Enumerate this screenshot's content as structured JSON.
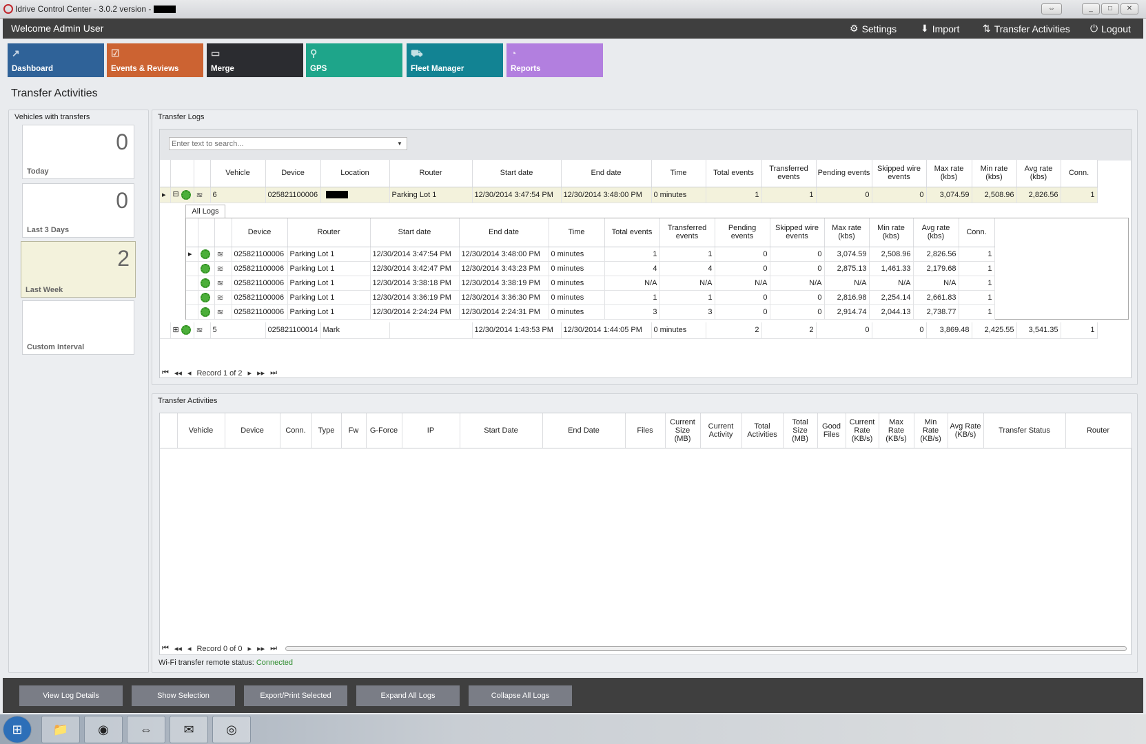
{
  "window": {
    "title": "Idrive Control Center - 3.0.2 version -",
    "controls": [
      "⇔",
      "_",
      "□",
      "✕"
    ]
  },
  "header": {
    "welcome": "Welcome Admin User",
    "links": [
      {
        "icon": "gears-icon",
        "glyph": "⚙",
        "label": "Settings"
      },
      {
        "icon": "download-icon",
        "glyph": "⬇",
        "label": "Import"
      },
      {
        "icon": "transfer-arrows-icon",
        "glyph": "⇅",
        "label": "Transfer Activities"
      },
      {
        "icon": "power-icon",
        "glyph": "⏻",
        "label": "Logout"
      }
    ]
  },
  "tiles": [
    {
      "label": "Dashboard",
      "color": "#2f6298",
      "glyph": "↗"
    },
    {
      "label": "Events & Reviews",
      "color": "#cc6332",
      "glyph": "☑"
    },
    {
      "label": "Merge",
      "color": "#2b2c30",
      "glyph": "▭"
    },
    {
      "label": "GPS",
      "color": "#1ea58a",
      "glyph": "⚲"
    },
    {
      "label": "Fleet Manager",
      "color": "#128393",
      "glyph": "⛟"
    },
    {
      "label": "Reports",
      "color": "#b27fdf",
      "glyph": "◔"
    }
  ],
  "page_title": "Transfer Activities",
  "vehicles_panel": {
    "title": "Vehicles with transfers",
    "cards": [
      {
        "count": "0",
        "label": "Today"
      },
      {
        "count": "0",
        "label": "Last 3 Days"
      },
      {
        "count": "2",
        "label": "Last Week",
        "selected": true
      },
      {
        "count": "",
        "label": "Custom Interval"
      }
    ]
  },
  "transfer_logs": {
    "title": "Transfer Logs",
    "search_placeholder": "Enter text to search...",
    "columns": [
      "",
      "",
      "",
      "Vehicle",
      "Device",
      "Location",
      "Router",
      "Start date",
      "End date",
      "Time",
      "Total events",
      "Transferred events",
      "Pending events",
      "Skipped wire events",
      "Max rate (kbs)",
      "Min rate (kbs)",
      "Avg rate (kbs)",
      "Conn."
    ],
    "rows": [
      {
        "expanded": true,
        "vehicle": "6",
        "device": "025821100006",
        "location": "",
        "router": "Parking Lot 1",
        "start": "12/30/2014 3:47:54 PM",
        "end": "12/30/2014 3:48:00 PM",
        "time": "0 minutes",
        "total": "1",
        "transferred": "1",
        "pending": "0",
        "skipped": "0",
        "max": "3,074.59",
        "min": "2,508.96",
        "avg": "2,826.56",
        "conn": "1"
      },
      {
        "expanded": false,
        "vehicle": "5",
        "device": "025821100014",
        "location": "Mark",
        "router": "",
        "start": "12/30/2014 1:43:53 PM",
        "end": "12/30/2014 1:44:05 PM",
        "time": "0 minutes",
        "total": "2",
        "transferred": "2",
        "pending": "0",
        "skipped": "0",
        "max": "3,869.48",
        "min": "2,425.55",
        "avg": "3,541.35",
        "conn": "1"
      }
    ],
    "detail": {
      "tab": "All Logs",
      "columns": [
        "",
        "",
        "",
        "Device",
        "Router",
        "Start date",
        "End date",
        "Time",
        "Total events",
        "Transferred events",
        "Pending events",
        "Skipped wire events",
        "Max rate (kbs)",
        "Min rate (kbs)",
        "Avg rate (kbs)",
        "Conn."
      ],
      "rows": [
        [
          "025821100006",
          "Parking Lot 1",
          "12/30/2014 3:47:54 PM",
          "12/30/2014 3:48:00 PM",
          "0 minutes",
          "1",
          "1",
          "0",
          "0",
          "3,074.59",
          "2,508.96",
          "2,826.56",
          "1"
        ],
        [
          "025821100006",
          "Parking Lot 1",
          "12/30/2014 3:42:47 PM",
          "12/30/2014 3:43:23 PM",
          "0 minutes",
          "4",
          "4",
          "0",
          "0",
          "2,875.13",
          "1,461.33",
          "2,179.68",
          "1"
        ],
        [
          "025821100006",
          "Parking Lot 1",
          "12/30/2014 3:38:18 PM",
          "12/30/2014 3:38:19 PM",
          "0 minutes",
          "N/A",
          "N/A",
          "N/A",
          "N/A",
          "N/A",
          "N/A",
          "N/A",
          "1"
        ],
        [
          "025821100006",
          "Parking Lot 1",
          "12/30/2014 3:36:19 PM",
          "12/30/2014 3:36:30 PM",
          "0 minutes",
          "1",
          "1",
          "0",
          "0",
          "2,816.98",
          "2,254.14",
          "2,661.83",
          "1"
        ],
        [
          "025821100006",
          "Parking Lot 1",
          "12/30/2014 2:24:24 PM",
          "12/30/2014 2:24:31 PM",
          "0 minutes",
          "3",
          "3",
          "0",
          "0",
          "2,914.74",
          "2,044.13",
          "2,738.77",
          "1"
        ]
      ]
    },
    "pager": "Record 1 of 2"
  },
  "transfer_activities": {
    "title": "Transfer Activities",
    "columns": [
      "",
      "Vehicle",
      "Device",
      "Conn.",
      "Type",
      "Fw",
      "G-Force",
      "IP",
      "Start Date",
      "End Date",
      "Files",
      "Current Size (MB)",
      "Current Activity",
      "Total Activities",
      "Total Size (MB)",
      "Good Files",
      "Current Rate (KB/s)",
      "Max Rate (KB/s)",
      "Min Rate (KB/s)",
      "Avg Rate (KB/s)",
      "Transfer Status",
      "Router"
    ],
    "pager": "Record 0 of 0"
  },
  "status": {
    "label": "Wi-Fi transfer remote status:",
    "value": "Connected",
    "value_color": "#2a8a2a"
  },
  "actions": [
    "View Log Details",
    "Show Selection",
    "Export/Print Selected",
    "Expand All Logs",
    "Collapse All Logs"
  ],
  "taskbar": [
    {
      "icon": "windows-start-icon",
      "glyph": "⊞"
    },
    {
      "icon": "file-explorer-icon",
      "glyph": "📁"
    },
    {
      "icon": "firefox-icon",
      "glyph": "◉"
    },
    {
      "icon": "teamviewer-icon",
      "glyph": "⇔"
    },
    {
      "icon": "outlook-icon",
      "glyph": "✉"
    },
    {
      "icon": "idrive-app-icon",
      "glyph": "◎"
    }
  ]
}
